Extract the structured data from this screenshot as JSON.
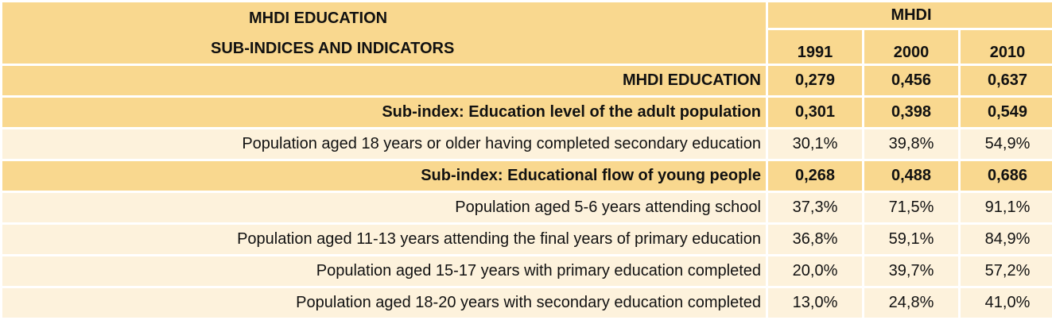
{
  "header": {
    "title_line1": "MHDI EDUCATION",
    "title_line2": "SUB-INDICES AND INDICATORS",
    "group_label": "MHDI",
    "years": [
      "1991",
      "2000",
      "2010"
    ]
  },
  "rows": [
    {
      "label": "MHDI EDUCATION",
      "values": [
        "0,279",
        "0,456",
        "0,637"
      ]
    },
    {
      "label": "Sub-index: Education level of the adult population",
      "values": [
        "0,301",
        "0,398",
        "0,549"
      ]
    },
    {
      "label": "Population aged 18 years or older having completed secondary education",
      "values": [
        "30,1%",
        "39,8%",
        "54,9%"
      ]
    },
    {
      "label": "Sub-index: Educational flow of young people",
      "values": [
        "0,268",
        "0,488",
        "0,686"
      ]
    },
    {
      "label": "Population aged 5-6 years attending school",
      "values": [
        "37,3%",
        "71,5%",
        "91,1%"
      ]
    },
    {
      "label": "Population aged 11-13 years attending the final years of primary education",
      "values": [
        "36,8%",
        "59,1%",
        "84,9%"
      ]
    },
    {
      "label": "Population aged 15-17 years with primary education completed",
      "values": [
        "20,0%",
        "39,7%",
        "57,2%"
      ]
    },
    {
      "label": "Population aged 18-20 years with secondary education completed",
      "values": [
        "13,0%",
        "24,8%",
        "41,0%"
      ]
    }
  ],
  "colors": {
    "header_bg": "#f9d88f",
    "row_dark": "#f9d88f",
    "row_light": "#fdf2dc"
  }
}
